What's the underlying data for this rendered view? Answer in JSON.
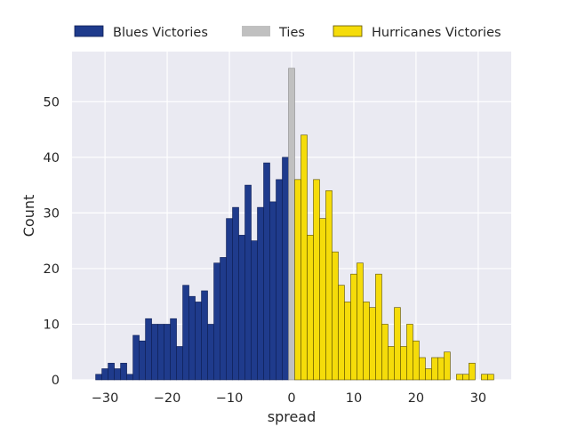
{
  "chart_data": {
    "type": "bar",
    "title": "",
    "xlabel": "spread",
    "ylabel": "Count",
    "xlim": [
      -35.3,
      35.3
    ],
    "ylim": [
      0,
      59
    ],
    "grid": true,
    "legend_placement": "top",
    "bin_width": 1,
    "x_ticks": [
      -30,
      -20,
      -10,
      0,
      10,
      20,
      30
    ],
    "x_tick_labels": [
      "−30",
      "−20",
      "−10",
      "0",
      "10",
      "20",
      "30"
    ],
    "y_ticks": [
      0,
      10,
      20,
      30,
      40,
      50
    ],
    "y_tick_labels": [
      "0",
      "10",
      "20",
      "30",
      "40",
      "50"
    ],
    "colors": {
      "background": "#eaeaf2",
      "grid": "#ffffff",
      "blues": "#1f3b8c",
      "blues_edge": "#0f1f55",
      "ties": "#c0c0c0",
      "ties_edge": "#8a8a8a",
      "hurricanes": "#f5dc0a",
      "hurricanes_edge": "#5a4e00"
    },
    "series": [
      {
        "name": "Blues Victories",
        "color": "#1f3b8c",
        "x": [
          -31,
          -30,
          -29,
          -28,
          -27,
          -26,
          -25,
          -24,
          -23,
          -22,
          -21,
          -20,
          -19,
          -18,
          -17,
          -16,
          -15,
          -14,
          -13,
          -12,
          -11,
          -10,
          -9,
          -8,
          -7,
          -6,
          -5,
          -4,
          -3,
          -2,
          -1
        ],
        "values": [
          1,
          2,
          3,
          2,
          3,
          1,
          8,
          7,
          11,
          10,
          10,
          10,
          11,
          6,
          17,
          15,
          14,
          16,
          10,
          21,
          22,
          29,
          31,
          26,
          35,
          25,
          31,
          39,
          32,
          36,
          40
        ]
      },
      {
        "name": "Ties",
        "color": "#c0c0c0",
        "x": [
          0
        ],
        "values": [
          56
        ]
      },
      {
        "name": "Hurricanes Victories",
        "color": "#f5dc0a",
        "x": [
          1,
          2,
          3,
          4,
          5,
          6,
          7,
          8,
          9,
          10,
          11,
          12,
          13,
          14,
          15,
          16,
          17,
          18,
          19,
          20,
          21,
          22,
          23,
          24,
          25,
          26,
          27,
          28,
          29,
          30,
          31,
          32
        ],
        "values": [
          36,
          44,
          26,
          36,
          29,
          34,
          23,
          17,
          14,
          19,
          21,
          14,
          13,
          19,
          10,
          6,
          13,
          6,
          10,
          7,
          4,
          2,
          4,
          4,
          5,
          0,
          1,
          1,
          3,
          0,
          1,
          1
        ]
      }
    ]
  }
}
